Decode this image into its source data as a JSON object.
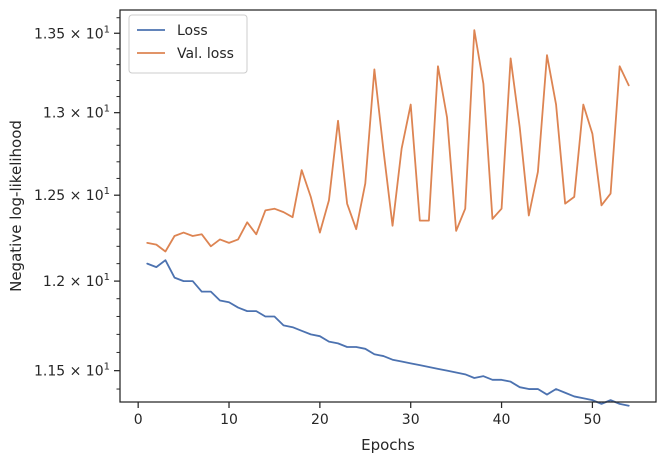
{
  "chart_data": {
    "type": "line",
    "xlabel": "Epochs",
    "ylabel": "Negative log-likelihood",
    "xlim": [
      -2,
      57
    ],
    "ylim": [
      11.33,
      13.65
    ],
    "yscale": "log",
    "grid": false,
    "legend_position": "top-left",
    "xticks": [
      {
        "value": 0,
        "label": "0"
      },
      {
        "value": 10,
        "label": "10"
      },
      {
        "value": 20,
        "label": "20"
      },
      {
        "value": 30,
        "label": "30"
      },
      {
        "value": 40,
        "label": "40"
      },
      {
        "value": 50,
        "label": "50"
      }
    ],
    "yticks": [
      {
        "value": 11.5,
        "mantissa": "1.15",
        "label": "1.15 × 10¹"
      },
      {
        "value": 12.0,
        "mantissa": "1.2",
        "label": "1.2 × 10¹"
      },
      {
        "value": 12.5,
        "mantissa": "1.25",
        "label": "1.25 × 10¹"
      },
      {
        "value": 13.0,
        "mantissa": "1.3",
        "label": "1.3 × 10¹"
      },
      {
        "value": 13.5,
        "mantissa": "1.35",
        "label": "1.35 × 10¹"
      }
    ],
    "x": [
      1,
      2,
      3,
      4,
      5,
      6,
      7,
      8,
      9,
      10,
      11,
      12,
      13,
      14,
      15,
      16,
      17,
      18,
      19,
      20,
      21,
      22,
      23,
      24,
      25,
      26,
      27,
      28,
      29,
      30,
      31,
      32,
      33,
      34,
      35,
      36,
      37,
      38,
      39,
      40,
      41,
      42,
      43,
      44,
      45,
      46,
      47,
      48,
      49,
      50,
      51,
      52,
      53,
      54
    ],
    "series": [
      {
        "name": "Loss",
        "color": "#4c72b0",
        "values": [
          12.1,
          12.08,
          12.12,
          12.02,
          12.0,
          12.0,
          11.94,
          11.94,
          11.89,
          11.88,
          11.85,
          11.83,
          11.83,
          11.8,
          11.8,
          11.75,
          11.74,
          11.72,
          11.7,
          11.69,
          11.66,
          11.65,
          11.63,
          11.63,
          11.62,
          11.59,
          11.58,
          11.56,
          11.55,
          11.54,
          11.53,
          11.52,
          11.51,
          11.5,
          11.49,
          11.48,
          11.46,
          11.47,
          11.45,
          11.45,
          11.44,
          11.41,
          11.4,
          11.4,
          11.37,
          11.4,
          11.38,
          11.36,
          11.35,
          11.34,
          11.32,
          11.34,
          11.32,
          11.31
        ]
      },
      {
        "name": "Val. loss",
        "color": "#dd8452",
        "values": [
          12.22,
          12.21,
          12.17,
          12.26,
          12.28,
          12.26,
          12.27,
          12.2,
          12.24,
          12.22,
          12.24,
          12.34,
          12.27,
          12.41,
          12.42,
          12.4,
          12.37,
          12.65,
          12.49,
          12.28,
          12.47,
          12.95,
          12.45,
          12.3,
          12.57,
          13.27,
          12.77,
          12.32,
          12.78,
          13.05,
          12.35,
          12.35,
          13.29,
          12.97,
          12.29,
          12.42,
          13.52,
          13.18,
          12.36,
          12.42,
          13.34,
          12.91,
          12.38,
          12.64,
          13.36,
          13.05,
          12.45,
          12.49,
          13.05,
          12.87,
          12.44,
          12.51,
          13.29,
          13.17
        ]
      }
    ]
  }
}
